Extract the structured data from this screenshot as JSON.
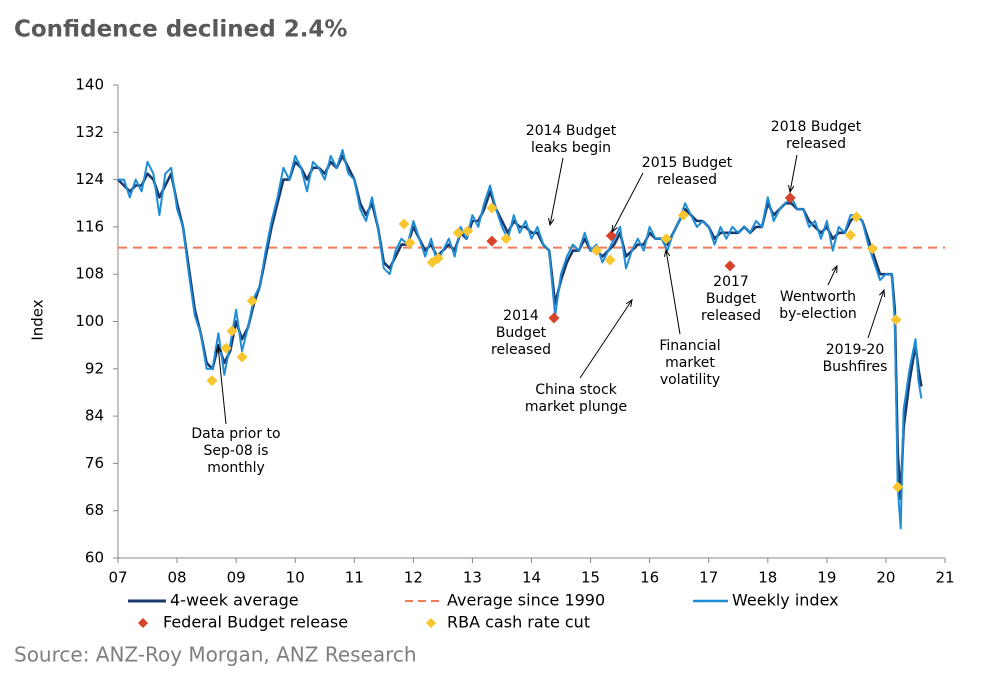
{
  "chart_data": {
    "type": "line",
    "title": "Confidence declined 2.4%",
    "y_label": "Index",
    "source": "Source: ANZ-Roy Morgan, ANZ Research",
    "xlim": [
      2007,
      2021
    ],
    "ylim": [
      60,
      140
    ],
    "yticks": [
      60,
      68,
      76,
      84,
      92,
      100,
      108,
      116,
      124,
      132,
      140
    ],
    "xticks": [
      {
        "value": 2007,
        "label": "07"
      },
      {
        "value": 2008,
        "label": "08"
      },
      {
        "value": 2009,
        "label": "09"
      },
      {
        "value": 2010,
        "label": "10"
      },
      {
        "value": 2011,
        "label": "11"
      },
      {
        "value": 2012,
        "label": "12"
      },
      {
        "value": 2013,
        "label": "13"
      },
      {
        "value": 2014,
        "label": "14"
      },
      {
        "value": 2015,
        "label": "15"
      },
      {
        "value": 2016,
        "label": "16"
      },
      {
        "value": 2017,
        "label": "17"
      },
      {
        "value": 2018,
        "label": "18"
      },
      {
        "value": 2019,
        "label": "19"
      },
      {
        "value": 2020,
        "label": "20"
      },
      {
        "value": 2021,
        "label": "21"
      }
    ],
    "x": [
      2007.0,
      2007.1,
      2007.2,
      2007.3,
      2007.4,
      2007.5,
      2007.6,
      2007.7,
      2007.8,
      2007.9,
      2008.0,
      2008.1,
      2008.2,
      2008.3,
      2008.4,
      2008.5,
      2008.6,
      2008.7,
      2008.8,
      2008.9,
      2009.0,
      2009.1,
      2009.2,
      2009.3,
      2009.4,
      2009.5,
      2009.6,
      2009.7,
      2009.8,
      2009.9,
      2010.0,
      2010.1,
      2010.2,
      2010.3,
      2010.4,
      2010.5,
      2010.6,
      2010.7,
      2010.8,
      2010.9,
      2011.0,
      2011.1,
      2011.2,
      2011.3,
      2011.4,
      2011.5,
      2011.6,
      2011.7,
      2011.8,
      2011.9,
      2012.0,
      2012.1,
      2012.2,
      2012.3,
      2012.4,
      2012.5,
      2012.6,
      2012.7,
      2012.8,
      2012.9,
      2013.0,
      2013.1,
      2013.2,
      2013.3,
      2013.4,
      2013.5,
      2013.6,
      2013.7,
      2013.8,
      2013.9,
      2014.0,
      2014.1,
      2014.2,
      2014.3,
      2014.4,
      2014.5,
      2014.6,
      2014.7,
      2014.8,
      2014.9,
      2015.0,
      2015.1,
      2015.2,
      2015.3,
      2015.4,
      2015.5,
      2015.6,
      2015.7,
      2015.8,
      2015.9,
      2016.0,
      2016.1,
      2016.2,
      2016.3,
      2016.4,
      2016.5,
      2016.6,
      2016.7,
      2016.8,
      2016.9,
      2017.0,
      2017.1,
      2017.2,
      2017.3,
      2017.4,
      2017.5,
      2017.6,
      2017.7,
      2017.8,
      2017.9,
      2018.0,
      2018.1,
      2018.2,
      2018.3,
      2018.4,
      2018.5,
      2018.6,
      2018.7,
      2018.8,
      2018.9,
      2019.0,
      2019.1,
      2019.2,
      2019.3,
      2019.4,
      2019.5,
      2019.6,
      2019.7,
      2019.8,
      2019.9,
      2020.0,
      2020.1,
      2020.15,
      2020.2,
      2020.25,
      2020.3,
      2020.4,
      2020.5,
      2020.55,
      2020.6
    ],
    "series": [
      {
        "name": "4-week average",
        "color": "#1b3a6b",
        "values": [
          124,
          123,
          122,
          123,
          123,
          125,
          124,
          121,
          123,
          125,
          120,
          116,
          109,
          102,
          98,
          93,
          92,
          96,
          93,
          95,
          100,
          97,
          99,
          103,
          106,
          111,
          116,
          120,
          124,
          124,
          127,
          126,
          124,
          126,
          126,
          125,
          127,
          126,
          128,
          126,
          124,
          120,
          118,
          120,
          116,
          110,
          109,
          111,
          113,
          113,
          116,
          114,
          112,
          113,
          111,
          112,
          113,
          112,
          115,
          114,
          117,
          117,
          119,
          122,
          119,
          117,
          115,
          117,
          116,
          116,
          115,
          115,
          113,
          112,
          103,
          107,
          110,
          112,
          112,
          114,
          112,
          112,
          111,
          112,
          113,
          115,
          111,
          112,
          113,
          113,
          115,
          114,
          114,
          113,
          115,
          117,
          119,
          118,
          117,
          117,
          116,
          114,
          115,
          115,
          115,
          115,
          116,
          115,
          116,
          116,
          120,
          118,
          119,
          120,
          120,
          119,
          119,
          117,
          116,
          115,
          116,
          114,
          115,
          115,
          117,
          118,
          117,
          114,
          111,
          108,
          108,
          108,
          102,
          78,
          70,
          82,
          90,
          96,
          92,
          89
        ]
      },
      {
        "name": "Weekly index",
        "color": "#1f8dd6",
        "values": [
          124,
          124,
          121,
          124,
          122,
          127,
          125,
          118,
          125,
          126,
          119,
          116,
          108,
          101,
          98,
          92,
          92,
          98,
          91,
          96,
          102,
          95,
          99,
          104,
          106,
          112,
          117,
          121,
          126,
          124,
          128,
          126,
          122,
          127,
          126,
          124,
          128,
          126,
          129,
          125,
          124,
          119,
          117,
          121,
          116,
          109,
          108,
          112,
          114,
          113,
          117,
          114,
          111,
          114,
          110,
          112,
          114,
          111,
          116,
          114,
          118,
          116,
          120,
          123,
          119,
          116,
          114,
          118,
          115,
          117,
          114,
          116,
          113,
          112,
          101,
          108,
          111,
          113,
          112,
          115,
          112,
          113,
          110,
          112,
          114,
          116,
          109,
          112,
          114,
          112,
          116,
          114,
          114,
          112,
          115,
          117,
          120,
          118,
          116,
          117,
          116,
          113,
          116,
          114,
          116,
          115,
          116,
          115,
          117,
          116,
          121,
          117,
          119,
          120,
          121,
          119,
          119,
          116,
          117,
          114,
          117,
          112,
          116,
          115,
          118,
          118,
          117,
          113,
          110,
          107,
          108,
          108,
          100,
          72,
          65,
          85,
          92,
          97,
          90,
          87
        ]
      }
    ],
    "reference": {
      "name": "Average since 1990",
      "color": "#f07a5a",
      "value": 112.5
    },
    "markers": [
      {
        "name": "Federal Budget release",
        "color": "#d9432a",
        "x": [
          2013.33,
          2014.38,
          2015.35,
          2017.36,
          2018.38
        ],
        "values": [
          113.6,
          100.6,
          114.5,
          109.4,
          120.9
        ]
      },
      {
        "name": "RBA cash rate cut",
        "color": "#f9c630",
        "x": [
          2008.59,
          2008.83,
          2008.93,
          2009.1,
          2009.27,
          2011.84,
          2011.94,
          2012.32,
          2012.42,
          2012.76,
          2012.92,
          2013.33,
          2013.57,
          2015.1,
          2015.33,
          2016.28,
          2016.57,
          2019.4,
          2019.5,
          2019.77,
          2020.17,
          2020.2
        ],
        "values": [
          90,
          95.5,
          98.4,
          94,
          103.5,
          116.5,
          113.3,
          110,
          110.7,
          115,
          115.3,
          119.2,
          114,
          112,
          110.4,
          114,
          118,
          114.6,
          117.7,
          112.3,
          100.3,
          72
        ]
      }
    ],
    "annotations": [
      {
        "lines": [
          "2014 Budget",
          "leaks begin"
        ]
      },
      {
        "lines": [
          "2015 Budget",
          "released"
        ]
      },
      {
        "lines": [
          "2018 Budget",
          "released"
        ]
      },
      {
        "lines": [
          "2014",
          "Budget",
          "released"
        ]
      },
      {
        "lines": [
          "China stock",
          "market plunge"
        ]
      },
      {
        "lines": [
          "Financial",
          "market",
          "volatility"
        ]
      },
      {
        "lines": [
          "2017",
          "Budget",
          "released"
        ]
      },
      {
        "lines": [
          "Wentworth",
          "by-election"
        ]
      },
      {
        "lines": [
          "2019-20",
          "Bushfires"
        ]
      },
      {
        "lines": [
          "Data prior to",
          "Sep-08 is",
          "monthly"
        ]
      }
    ]
  }
}
